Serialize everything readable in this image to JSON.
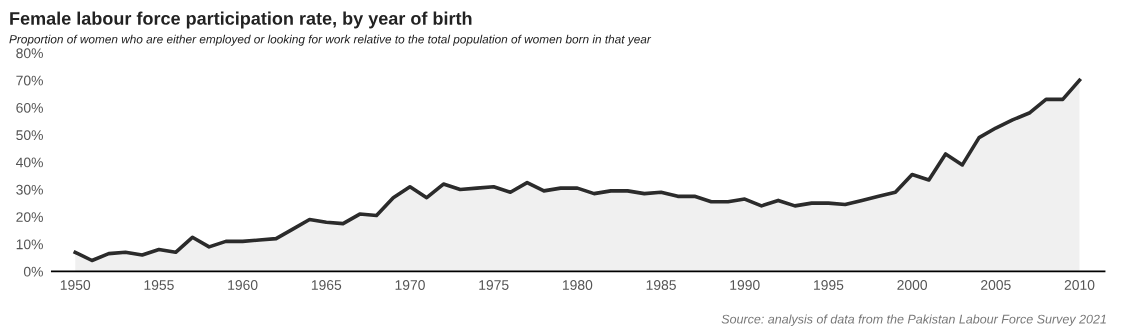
{
  "chart_data": {
    "type": "area",
    "title": "Female labour force participation rate, by year of birth",
    "subtitle": "Proportion of women who are either employed or looking for work relative to the total population of women born in that year",
    "annotations": [
      "Source: analysis of data from the Pakistan Labour Force Survey 2021"
    ],
    "x": [
      1950,
      1951,
      1952,
      1953,
      1954,
      1955,
      1956,
      1957,
      1958,
      1959,
      1960,
      1961,
      1962,
      1963,
      1964,
      1965,
      1966,
      1967,
      1968,
      1969,
      1970,
      1971,
      1972,
      1973,
      1974,
      1975,
      1976,
      1977,
      1978,
      1979,
      1980,
      1981,
      1982,
      1983,
      1984,
      1985,
      1986,
      1987,
      1988,
      1989,
      1990,
      1991,
      1992,
      1993,
      1994,
      1995,
      1996,
      1997,
      1998,
      1999,
      2000,
      2001,
      2002,
      2003,
      2004,
      2005,
      2006,
      2007,
      2008,
      2009,
      2010
    ],
    "series": [
      {
        "color": "#2b2b2b",
        "values": [
          7,
          4,
          6.5,
          7,
          6,
          8,
          7,
          12.5,
          9,
          11,
          11,
          11.5,
          12,
          15.5,
          19,
          18,
          17.5,
          21,
          20.5,
          27,
          31,
          27,
          32,
          30,
          30.5,
          31,
          29,
          32.5,
          29.5,
          30.5,
          30.5,
          28.5,
          29.5,
          29.5,
          28.5,
          29,
          27.5,
          27.5,
          25.5,
          25.5,
          26.5,
          24,
          26,
          24,
          25,
          25,
          24.5,
          26,
          27.5,
          29,
          35.5,
          33.5,
          43,
          39,
          49,
          52.5,
          55.5,
          58,
          63,
          63,
          70
        ]
      }
    ],
    "xlim": [
      1948.6,
      2011.5
    ],
    "xticks": [
      1950,
      1955,
      1960,
      1965,
      1970,
      1975,
      1980,
      1985,
      1990,
      1995,
      2000,
      2005,
      2010
    ],
    "ylim": [
      0,
      80
    ],
    "yticks": [
      {
        "value": 0,
        "label": "0%"
      },
      {
        "value": 10,
        "label": "10%"
      },
      {
        "value": 20,
        "label": "20%"
      },
      {
        "value": 30,
        "label": "30%"
      },
      {
        "value": 40,
        "label": "40%"
      },
      {
        "value": 50,
        "label": "50%"
      },
      {
        "value": 60,
        "label": "60%"
      },
      {
        "value": 70,
        "label": "70%"
      },
      {
        "value": 80,
        "label": "80%"
      }
    ],
    "grid": false,
    "legend": false,
    "marker": "none",
    "line_style": "solid"
  }
}
